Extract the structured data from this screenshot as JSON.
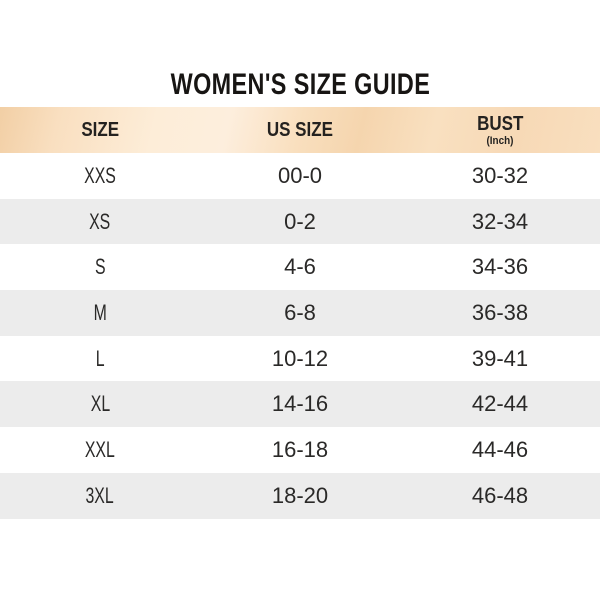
{
  "title": "WOMEN'S SIZE GUIDE",
  "table": {
    "headers": {
      "size": "SIZE",
      "us_size": "US SIZE",
      "bust": "BUST",
      "bust_unit": "(Inch)"
    },
    "rows": [
      {
        "size": "XXS",
        "us_size": "00-0",
        "bust": "30-32"
      },
      {
        "size": "XS",
        "us_size": "0-2",
        "bust": "32-34"
      },
      {
        "size": "S",
        "us_size": "4-6",
        "bust": "34-36"
      },
      {
        "size": "M",
        "us_size": "6-8",
        "bust": "36-38"
      },
      {
        "size": "L",
        "us_size": "10-12",
        "bust": "39-41"
      },
      {
        "size": "XL",
        "us_size": "14-16",
        "bust": "42-44"
      },
      {
        "size": "XXL",
        "us_size": "16-18",
        "bust": "44-46"
      },
      {
        "size": "3XL",
        "us_size": "18-20",
        "bust": "46-48"
      }
    ]
  },
  "colors": {
    "header_band_base": "#f9dfbf",
    "header_band_light": "#fdeedd",
    "header_band_dark": "#f2cfa5",
    "row_alt_bg": "#ececec",
    "row_bg": "#ffffff",
    "title_text": "#171513",
    "cell_text": "#2a2928"
  },
  "chart_data": {
    "type": "table",
    "title": "WOMEN'S SIZE GUIDE",
    "columns": [
      "SIZE",
      "US SIZE",
      "BUST (Inch)"
    ],
    "rows": [
      [
        "XXS",
        "00-0",
        "30-32"
      ],
      [
        "XS",
        "0-2",
        "32-34"
      ],
      [
        "S",
        "4-6",
        "34-36"
      ],
      [
        "M",
        "6-8",
        "36-38"
      ],
      [
        "L",
        "10-12",
        "39-41"
      ],
      [
        "XL",
        "14-16",
        "42-44"
      ],
      [
        "XXL",
        "16-18",
        "44-46"
      ],
      [
        "3XL",
        "18-20",
        "46-48"
      ]
    ],
    "layout": {
      "header_background": "peach gradient band",
      "row_striping": "white / light-gray alternating",
      "text_alignment": "center"
    }
  }
}
